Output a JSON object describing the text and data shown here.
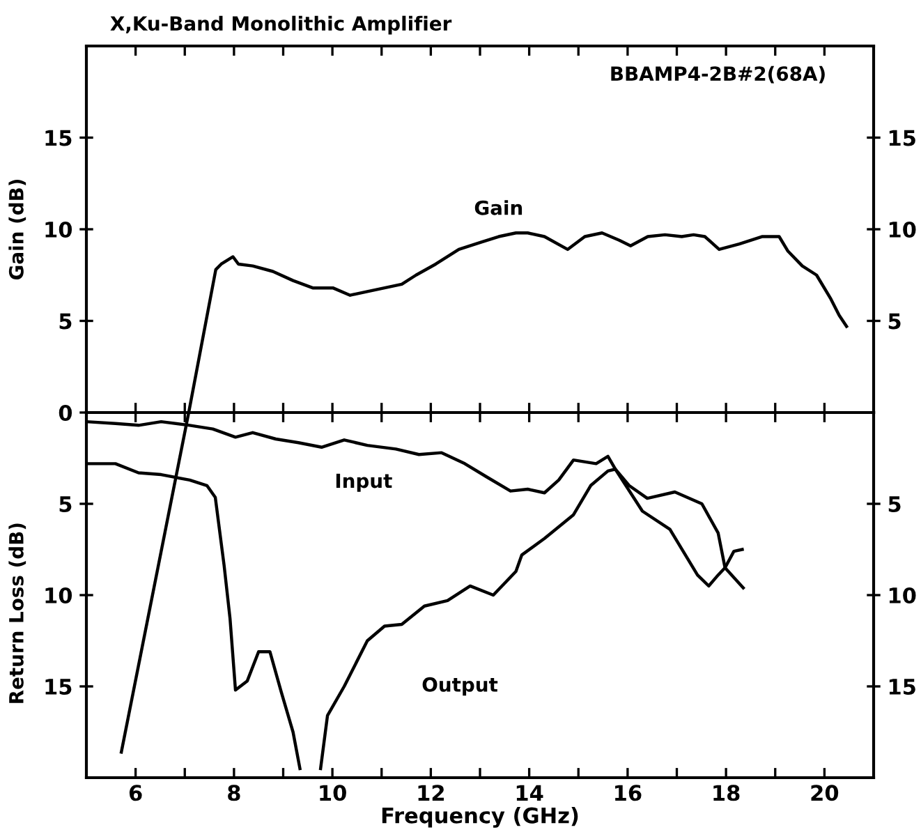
{
  "chart_data": [
    {
      "type": "line",
      "title": "X,Ku-Band Monolithic Amplifier",
      "ylabel": "Gain (dB)",
      "annotations": [
        "BBAMP4-2B#2(68A)"
      ],
      "xlim": [
        5,
        21
      ],
      "xticks": [
        6,
        {
          "value": 7,
          "label": null
        },
        8,
        {
          "value": 9,
          "label": null
        },
        10,
        {
          "value": 11,
          "label": null
        },
        12,
        {
          "value": 13,
          "label": null
        },
        14,
        {
          "value": 15,
          "label": null
        },
        16,
        {
          "value": 17,
          "label": null
        },
        18,
        {
          "value": 19,
          "label": null
        },
        20
      ],
      "ylim": [
        0,
        20
      ],
      "yticks": [
        0,
        5,
        10,
        15
      ],
      "y2lim": [
        0,
        20
      ],
      "y2ticks": [
        5,
        10,
        15
      ],
      "tick_labels": "y",
      "grid": false,
      "legend": false,
      "series": [
        {
          "name": "Gain",
          "color": "#000000",
          "x": [
            7.08,
            7.63,
            7.74,
            7.98,
            8.09,
            8.38,
            8.79,
            9.2,
            9.6,
            10.01,
            10.36,
            10.71,
            11.06,
            11.41,
            11.7,
            12.1,
            12.57,
            13.03,
            13.38,
            13.73,
            13.97,
            14.31,
            14.78,
            15.13,
            15.48,
            15.83,
            16.06,
            16.41,
            16.76,
            17.1,
            17.34,
            17.57,
            17.86,
            18.27,
            18.73,
            19.08,
            19.26,
            19.55,
            19.84,
            20.13,
            20.3,
            20.45
          ],
          "values": [
            0,
            7.8,
            8.1,
            8.5,
            8.1,
            8.0,
            7.7,
            7.2,
            6.8,
            6.8,
            6.4,
            6.6,
            6.8,
            7.0,
            7.5,
            8.1,
            8.9,
            9.3,
            9.6,
            9.8,
            9.8,
            9.6,
            8.9,
            9.6,
            9.8,
            9.4,
            9.1,
            9.6,
            9.7,
            9.6,
            9.7,
            9.6,
            8.9,
            9.2,
            9.6,
            9.6,
            8.8,
            8.0,
            7.5,
            6.2,
            5.3,
            4.7
          ]
        }
      ]
    },
    {
      "type": "line",
      "xlabel": "Frequency (GHz)",
      "ylabel": "Return Loss (dB)",
      "xlim": [
        5,
        21
      ],
      "xticks": [
        6,
        {
          "value": 7,
          "label": null
        },
        8,
        {
          "value": 9,
          "label": null
        },
        10,
        {
          "value": 11,
          "label": null
        },
        12,
        {
          "value": 13,
          "label": null
        },
        14,
        {
          "value": 15,
          "label": null
        },
        16,
        {
          "value": 17,
          "label": null
        },
        18,
        {
          "value": 19,
          "label": null
        },
        20
      ],
      "ylim": [
        20,
        0
      ],
      "yticks": [
        5,
        10,
        15
      ],
      "y2lim": [
        20,
        0
      ],
      "y2ticks": [
        5,
        10,
        15
      ],
      "grid": false,
      "legend": false,
      "series": [
        {
          "name": "Input",
          "color": "#000000",
          "x": [
            5.0,
            5.59,
            6.06,
            6.52,
            7.1,
            7.57,
            8.03,
            8.38,
            8.85,
            9.31,
            9.78,
            10.24,
            10.71,
            11.29,
            11.76,
            12.22,
            12.69,
            13.15,
            13.62,
            13.97,
            14.31,
            14.6,
            14.9,
            15.36,
            15.6,
            15.75,
            16.03,
            16.4,
            16.96,
            17.51,
            17.84,
            17.98,
            18.35
          ],
          "values": [
            0.5,
            0.6,
            0.7,
            0.5,
            0.7,
            0.9,
            1.35,
            1.1,
            1.45,
            1.65,
            1.9,
            1.5,
            1.8,
            2.0,
            2.3,
            2.2,
            2.8,
            3.55,
            4.3,
            4.2,
            4.4,
            3.7,
            2.6,
            2.8,
            2.4,
            3.1,
            4.0,
            4.7,
            4.35,
            5.0,
            6.6,
            8.5,
            9.6
          ]
        },
        {
          "name": "Output",
          "color": "#000000",
          "x": [
            5.0,
            5.59,
            6.06,
            6.52,
            7.1,
            7.45,
            7.62,
            7.8,
            7.92,
            8.03,
            8.27,
            8.5,
            8.73,
            8.96,
            9.2,
            9.34,
            9.55,
            9.76,
            9.9,
            10.24,
            10.71,
            11.06,
            11.41,
            11.87,
            12.34,
            12.8,
            13.27,
            13.73,
            13.85,
            14.31,
            14.9,
            15.25,
            15.6,
            15.75,
            16.3,
            16.86,
            17.42,
            17.65,
            17.84,
            17.98,
            18.16,
            18.33
          ],
          "values": [
            2.8,
            2.8,
            3.3,
            3.4,
            3.7,
            4.0,
            4.65,
            8.4,
            11.3,
            15.2,
            14.7,
            13.1,
            13.1,
            15.3,
            17.5,
            19.5,
            null,
            19.5,
            16.6,
            15.0,
            12.5,
            11.7,
            11.6,
            10.6,
            10.3,
            9.5,
            10.0,
            8.7,
            7.8,
            6.9,
            5.6,
            4.0,
            3.2,
            3.1,
            5.4,
            6.4,
            8.9,
            9.5,
            8.9,
            8.5,
            7.6,
            7.5
          ]
        },
        {
          "color": "#000000",
          "x": [
            5.71,
            7.08
          ],
          "values": [
            18.6,
            0
          ]
        }
      ]
    }
  ]
}
